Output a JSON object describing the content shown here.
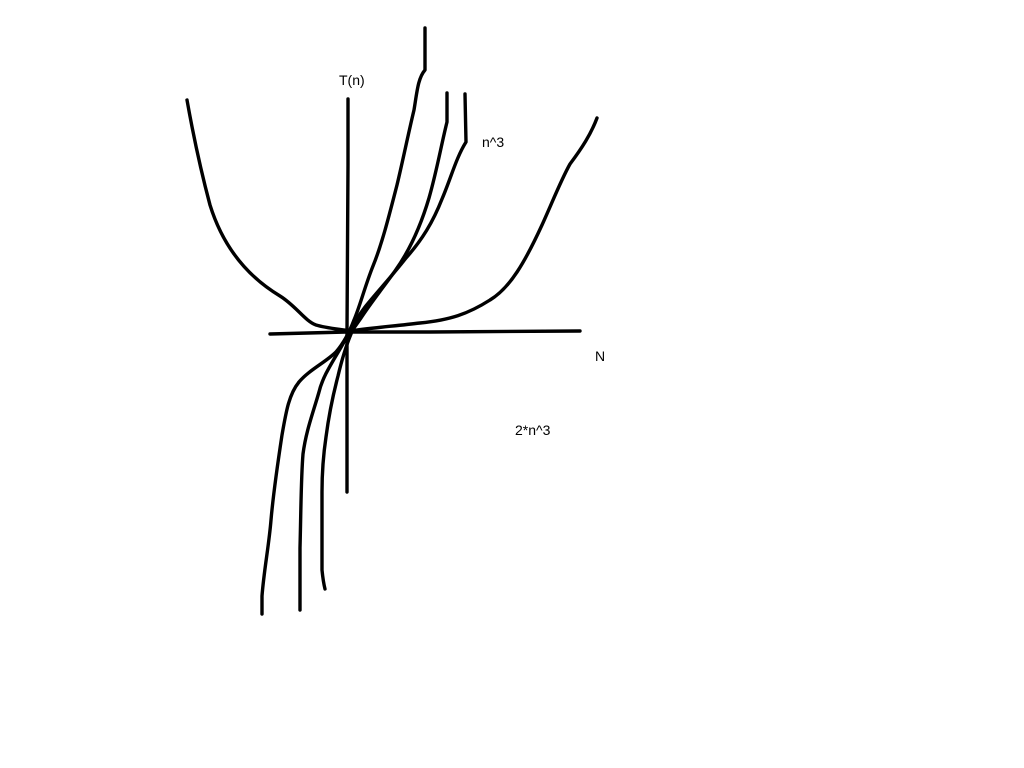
{
  "diagram": {
    "stroke_color": "#000000",
    "background_color": "#ffffff",
    "labels": {
      "y_axis": "T(n)",
      "x_axis": "N",
      "curve_n3": "n^3",
      "curve_2n3": "2*n^3"
    }
  }
}
